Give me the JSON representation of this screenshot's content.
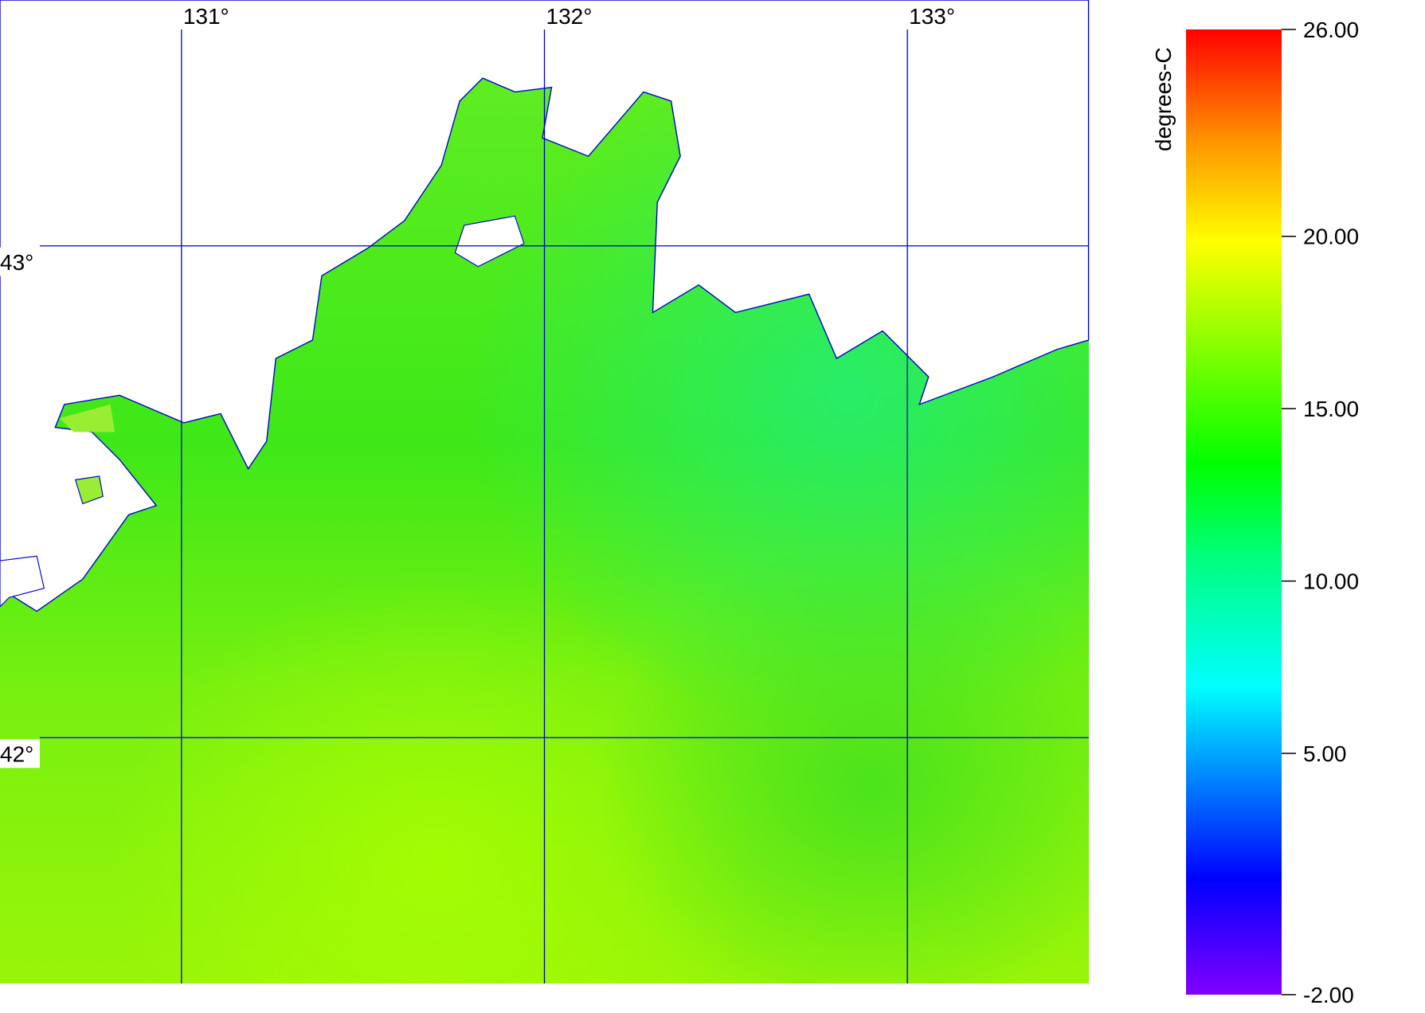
{
  "map": {
    "lon_lim": [
      130.5,
      133.5
    ],
    "lat_lim": [
      41.5,
      43.5
    ],
    "lon_ticks": [
      {
        "value": 131,
        "label": "131°"
      },
      {
        "value": 132,
        "label": "132°"
      },
      {
        "value": 133,
        "label": "133°"
      }
    ],
    "lat_ticks": [
      {
        "value": 43,
        "label": "43°"
      },
      {
        "value": 42,
        "label": "42°"
      }
    ],
    "grid_color": "#0000cc"
  },
  "colorbar": {
    "label": "degrees-C",
    "lim": [
      -2,
      26
    ],
    "ticks": [
      {
        "value": 26,
        "label": "26.00"
      },
      {
        "value": 20,
        "label": "20.00"
      },
      {
        "value": 15,
        "label": "15.00"
      },
      {
        "value": 10,
        "label": "10.00"
      },
      {
        "value": 5,
        "label": "5.00"
      },
      {
        "value": -2,
        "label": "-2.00"
      }
    ]
  }
}
